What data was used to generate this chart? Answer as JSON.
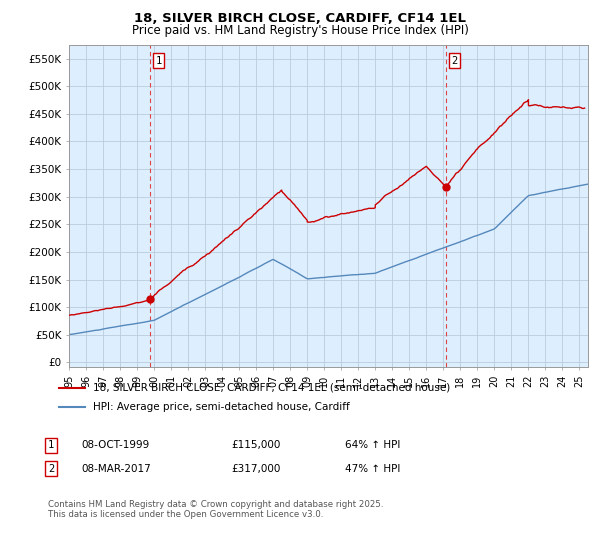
{
  "title": "18, SILVER BIRCH CLOSE, CARDIFF, CF14 1EL",
  "subtitle": "Price paid vs. HM Land Registry's House Price Index (HPI)",
  "yticks": [
    0,
    50000,
    100000,
    150000,
    200000,
    250000,
    300000,
    350000,
    400000,
    450000,
    500000,
    550000
  ],
  "ytick_labels": [
    "£0",
    "£50K",
    "£100K",
    "£150K",
    "£200K",
    "£250K",
    "£300K",
    "£350K",
    "£400K",
    "£450K",
    "£500K",
    "£550K"
  ],
  "ylim": [
    -8000,
    575000
  ],
  "xlim_start": 1995.0,
  "xlim_end": 2025.5,
  "sale1_date": 1999.77,
  "sale1_price": 115000,
  "sale1_label": "1",
  "sale2_date": 2017.18,
  "sale2_price": 317000,
  "sale2_label": "2",
  "legend_line1": "18, SILVER BIRCH CLOSE, CARDIFF, CF14 1EL (semi-detached house)",
  "legend_line2": "HPI: Average price, semi-detached house, Cardiff",
  "footnote": "Contains HM Land Registry data © Crown copyright and database right 2025.\nThis data is licensed under the Open Government Licence v3.0.",
  "red_color": "#cc0000",
  "blue_color": "#5588bb",
  "chart_bg_color": "#ddeeff",
  "background_color": "#ffffff",
  "grid_color": "#bbccdd",
  "vline_color": "#dd4444"
}
